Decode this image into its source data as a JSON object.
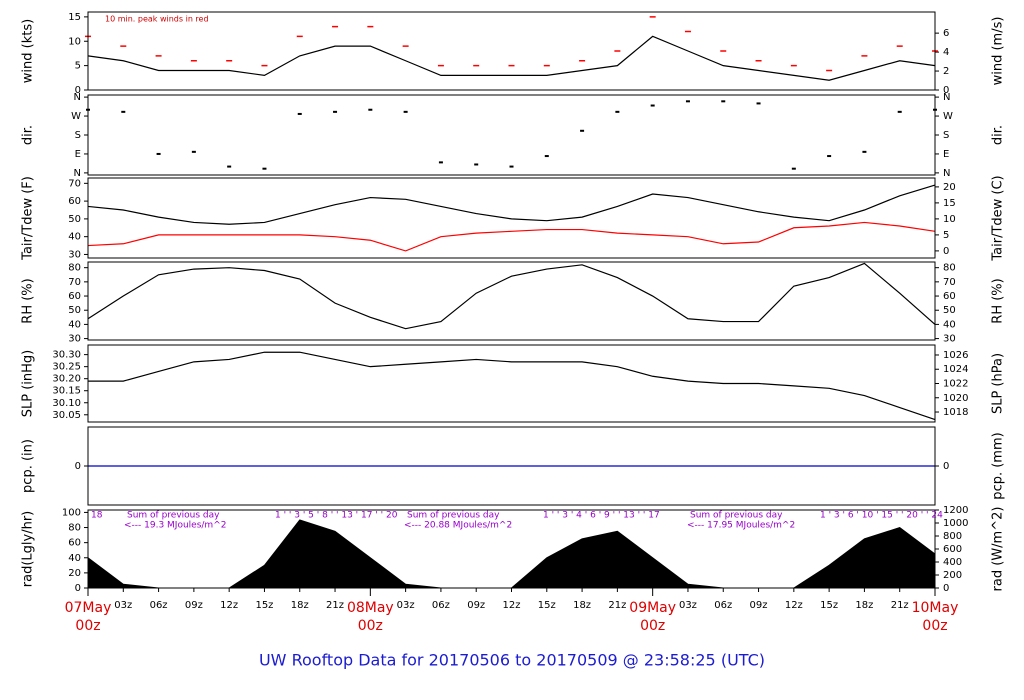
{
  "title": "UW Rooftop Data for 20170506  to  20170509 @ 23:58:25  (UTC)",
  "chart_data": [
    {
      "type": "line",
      "ylabel": "wind (kts)",
      "y2label": "wind (m/s)",
      "annotation": "10 min. peak winds in red",
      "xlim": [
        0,
        72
      ],
      "ylim": [
        0,
        16
      ],
      "yticks": [
        0,
        5,
        10,
        15
      ],
      "y2lim": [
        0,
        8.23
      ],
      "y2ticks": [
        0,
        2,
        4,
        6
      ],
      "x": [
        0,
        3,
        6,
        9,
        12,
        15,
        18,
        21,
        24,
        27,
        30,
        33,
        36,
        39,
        42,
        45,
        48,
        51,
        54,
        57,
        60,
        63,
        66,
        69,
        72
      ],
      "series": [
        {
          "kind": "line",
          "color": "#000000",
          "values": [
            7,
            6,
            4,
            4,
            4,
            3,
            7,
            9,
            9,
            6,
            3,
            3,
            3,
            3,
            4,
            5,
            11,
            8,
            5,
            4,
            3,
            2,
            4,
            6,
            5
          ]
        },
        {
          "kind": "dash",
          "color": "#ff0000",
          "values": [
            11,
            9,
            7,
            6,
            6,
            5,
            11,
            13,
            13,
            9,
            5,
            5,
            5,
            5,
            6,
            8,
            15,
            12,
            8,
            6,
            5,
            4,
            7,
            9,
            8
          ]
        }
      ]
    },
    {
      "type": "scatter",
      "ylabel": "dir.",
      "y2label": "dir.",
      "xlim": [
        0,
        72
      ],
      "ylim": [
        -10,
        370
      ],
      "yticks": [
        {
          "value": 0,
          "label": "N"
        },
        {
          "value": 90,
          "label": "E"
        },
        {
          "value": 180,
          "label": "S"
        },
        {
          "value": 270,
          "label": "W"
        },
        {
          "value": 360,
          "label": "N"
        }
      ],
      "y2lim": [
        -10,
        370
      ],
      "y2ticks": [
        {
          "value": 0,
          "label": "N"
        },
        {
          "value": 90,
          "label": "E"
        },
        {
          "value": 180,
          "label": "S"
        },
        {
          "value": 270,
          "label": "W"
        },
        {
          "value": 360,
          "label": "N"
        }
      ],
      "x": [
        0,
        3,
        6,
        9,
        12,
        15,
        18,
        21,
        24,
        27,
        30,
        33,
        36,
        39,
        42,
        45,
        48,
        51,
        54,
        57,
        60,
        63,
        66,
        69,
        72
      ],
      "series": [
        {
          "kind": "scatter",
          "color": "#000000",
          "values": [
            300,
            290,
            90,
            100,
            30,
            20,
            280,
            290,
            300,
            290,
            50,
            40,
            30,
            80,
            200,
            290,
            320,
            340,
            340,
            330,
            20,
            80,
            100,
            290,
            300
          ]
        }
      ]
    },
    {
      "type": "line",
      "ylabel": "Tair/Tdew (F)",
      "y2label": "Tair/Tdew (C)",
      "xlim": [
        0,
        72
      ],
      "ylim": [
        28,
        73
      ],
      "yticks": [
        30,
        40,
        50,
        60,
        70
      ],
      "y2lim": [
        -2.22,
        22.78
      ],
      "y2ticks": [
        0,
        5,
        10,
        15,
        20
      ],
      "x": [
        0,
        3,
        6,
        9,
        12,
        15,
        18,
        21,
        24,
        27,
        30,
        33,
        36,
        39,
        42,
        45,
        48,
        51,
        54,
        57,
        60,
        63,
        66,
        69,
        72
      ],
      "series": [
        {
          "kind": "line",
          "color": "#000000",
          "values": [
            57,
            55,
            51,
            48,
            47,
            48,
            53,
            58,
            62,
            61,
            57,
            53,
            50,
            49,
            51,
            57,
            64,
            62,
            58,
            54,
            51,
            49,
            55,
            63,
            69
          ]
        },
        {
          "kind": "line",
          "color": "#ff0000",
          "values": [
            35,
            36,
            41,
            41,
            41,
            41,
            41,
            40,
            38,
            32,
            40,
            42,
            43,
            44,
            44,
            42,
            41,
            40,
            36,
            37,
            45,
            46,
            48,
            46,
            43
          ]
        }
      ]
    },
    {
      "type": "line",
      "ylabel": "RH (%)",
      "y2label": "RH (%)",
      "xlim": [
        0,
        72
      ],
      "ylim": [
        29,
        84
      ],
      "yticks": [
        30,
        40,
        50,
        60,
        70,
        80
      ],
      "y2lim": [
        29,
        84
      ],
      "y2ticks": [
        30,
        40,
        50,
        60,
        70,
        80
      ],
      "x": [
        0,
        3,
        6,
        9,
        12,
        15,
        18,
        21,
        24,
        27,
        30,
        33,
        36,
        39,
        42,
        45,
        48,
        51,
        54,
        57,
        60,
        63,
        66,
        69,
        72
      ],
      "series": [
        {
          "kind": "line",
          "color": "#000000",
          "values": [
            44,
            60,
            75,
            79,
            80,
            78,
            72,
            55,
            45,
            37,
            42,
            62,
            74,
            79,
            82,
            73,
            60,
            44,
            42,
            42,
            67,
            73,
            83,
            62,
            40
          ]
        }
      ]
    },
    {
      "type": "line",
      "ylabel": "SLP (inHg)",
      "y2label": "SLP (hPa)",
      "xlim": [
        0,
        72
      ],
      "ylim": [
        30.02,
        30.34
      ],
      "yticks": [
        {
          "value": 30.05,
          "label": "30.05"
        },
        {
          "value": 30.1,
          "label": "30.10"
        },
        {
          "value": 30.15,
          "label": "30.15"
        },
        {
          "value": 30.2,
          "label": "30.20"
        },
        {
          "value": 30.25,
          "label": "30.25"
        },
        {
          "value": 30.3,
          "label": "30.30"
        }
      ],
      "y2lim": [
        1016.6,
        1027.4
      ],
      "y2ticks": [
        1018,
        1020,
        1022,
        1024,
        1026
      ],
      "x": [
        0,
        3,
        6,
        9,
        12,
        15,
        18,
        21,
        24,
        27,
        30,
        33,
        36,
        39,
        42,
        45,
        48,
        51,
        54,
        57,
        60,
        63,
        66,
        69,
        72
      ],
      "series": [
        {
          "kind": "line",
          "color": "#000000",
          "values": [
            30.19,
            30.19,
            30.23,
            30.27,
            30.28,
            30.31,
            30.31,
            30.28,
            30.25,
            30.26,
            30.27,
            30.28,
            30.27,
            30.27,
            30.27,
            30.25,
            30.21,
            30.19,
            30.18,
            30.18,
            30.17,
            30.16,
            30.13,
            30.08,
            30.03
          ]
        }
      ]
    },
    {
      "type": "line",
      "ylabel": "pcp. (in)",
      "y2label": "pcp. (mm)",
      "xlim": [
        0,
        72
      ],
      "ylim": [
        -1,
        1
      ],
      "yticks": [
        0
      ],
      "y2lim": [
        -25.4,
        25.4
      ],
      "y2ticks": [
        0
      ],
      "x": [
        0,
        72
      ],
      "series": [
        {
          "kind": "line",
          "color": "#0000cc",
          "values": [
            0,
            0
          ]
        }
      ]
    },
    {
      "type": "area",
      "ylabel": "rad(Lgly/hr)",
      "y2label": "rad (W/m^2)",
      "xlim": [
        0,
        72
      ],
      "ylim": [
        0,
        103.2
      ],
      "yticks": [
        0,
        20,
        40,
        60,
        80,
        100
      ],
      "y2lim": [
        0,
        1200
      ],
      "y2ticks": [
        0,
        200,
        400,
        600,
        800,
        1000,
        1200
      ],
      "x": [
        0,
        3,
        6,
        9,
        12,
        15,
        18,
        21,
        24,
        27,
        30,
        33,
        36,
        39,
        42,
        45,
        48,
        51,
        54,
        57,
        60,
        63,
        66,
        69,
        72
      ],
      "series": [
        {
          "kind": "area",
          "color": "#000000",
          "values": [
            40,
            5,
            0,
            0,
            0,
            30,
            90,
            75,
            40,
            5,
            0,
            0,
            0,
            40,
            65,
            75,
            40,
            5,
            0,
            0,
            0,
            30,
            65,
            80,
            45
          ]
        }
      ],
      "sun_hours": [
        "18",
        "1 ' ' 3 ' 5 ' 8 ' ' 13 ' 17 ' ' 20",
        "1 ' ' 3 ' 4 ' 6 ' 9 ' ' 13 ' ' 17",
        "1 ' 3 ' 6 ' 10 ' 15 ' ' 20 ' ' 24"
      ],
      "daily_sums": [
        [
          "Sum of previous day",
          "<--- 19.3 MJoules/m^2"
        ],
        [
          "Sum of previous day",
          "<--- 20.88 MJoules/m^2"
        ],
        [
          "Sum of previous day",
          "<--- 17.95 MJoules/m^2"
        ]
      ],
      "xticks": [
        {
          "value": 0,
          "label": "00z"
        },
        {
          "value": 3,
          "label": "03z"
        },
        {
          "value": 6,
          "label": "06z"
        },
        {
          "value": 9,
          "label": "09z"
        },
        {
          "value": 12,
          "label": "12z"
        },
        {
          "value": 15,
          "label": "15z"
        },
        {
          "value": 18,
          "label": "18z"
        },
        {
          "value": 21,
          "label": "21z"
        },
        {
          "value": 24,
          "label": "00z"
        },
        {
          "value": 27,
          "label": "03z"
        },
        {
          "value": 30,
          "label": "06z"
        },
        {
          "value": 33,
          "label": "09z"
        },
        {
          "value": 36,
          "label": "12z"
        },
        {
          "value": 39,
          "label": "15z"
        },
        {
          "value": 42,
          "label": "18z"
        },
        {
          "value": 45,
          "label": "21z"
        },
        {
          "value": 48,
          "label": "00z"
        },
        {
          "value": 51,
          "label": "03z"
        },
        {
          "value": 54,
          "label": "06z"
        },
        {
          "value": 57,
          "label": "09z"
        },
        {
          "value": 60,
          "label": "12z"
        },
        {
          "value": 63,
          "label": "15z"
        },
        {
          "value": 66,
          "label": "18z"
        },
        {
          "value": 69,
          "label": "21z"
        },
        {
          "value": 72,
          "label": "00z"
        }
      ],
      "day_labels": [
        {
          "value": 0,
          "label": "07May"
        },
        {
          "value": 24,
          "label": "08May"
        },
        {
          "value": 48,
          "label": "09May"
        },
        {
          "value": 72,
          "label": "10May"
        }
      ]
    }
  ]
}
